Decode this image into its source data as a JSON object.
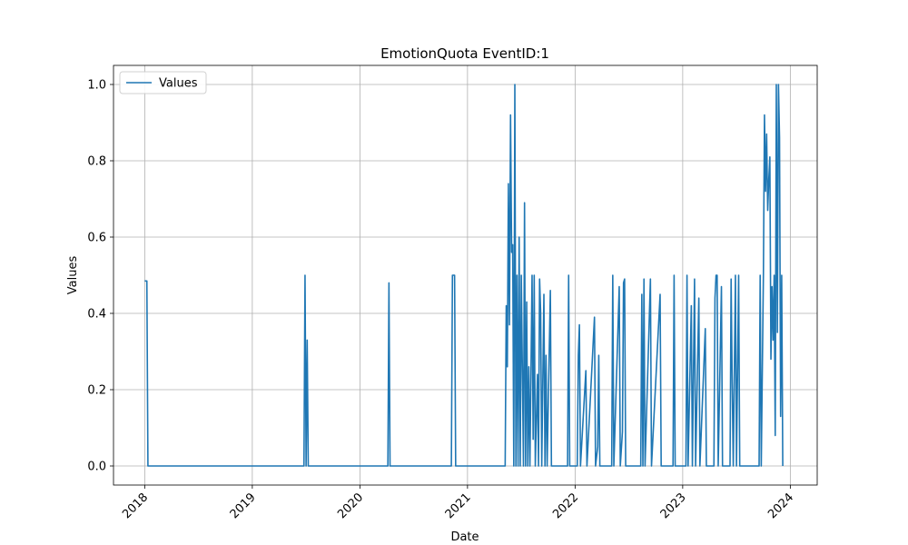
{
  "chart_data": {
    "type": "line",
    "title": "EmotionQuota EventID:1",
    "xlabel": "Date",
    "ylabel": "Values",
    "x": [
      2018.0,
      2018.02,
      2018.03,
      2019.48,
      2019.49,
      2019.5,
      2019.51,
      2019.52,
      2020.26,
      2020.27,
      2020.28,
      2020.85,
      2020.86,
      2020.88,
      2020.89,
      2021.35,
      2021.36,
      2021.37,
      2021.38,
      2021.39,
      2021.4,
      2021.41,
      2021.42,
      2021.43,
      2021.44,
      2021.45,
      2021.46,
      2021.47,
      2021.48,
      2021.49,
      2021.5,
      2021.52,
      2021.53,
      2021.54,
      2021.55,
      2021.56,
      2021.57,
      2021.58,
      2021.6,
      2021.61,
      2021.62,
      2021.63,
      2021.65,
      2021.66,
      2021.67,
      2021.68,
      2021.69,
      2021.71,
      2021.72,
      2021.73,
      2021.74,
      2021.77,
      2021.78,
      2021.93,
      2021.94,
      2021.95,
      2022.02,
      2022.03,
      2022.04,
      2022.05,
      2022.1,
      2022.11,
      2022.18,
      2022.19,
      2022.21,
      2022.22,
      2022.23,
      2022.34,
      2022.35,
      2022.36,
      2022.41,
      2022.42,
      2022.44,
      2022.45,
      2022.46,
      2022.47,
      2022.61,
      2022.62,
      2022.63,
      2022.64,
      2022.65,
      2022.7,
      2022.71,
      2022.79,
      2022.8,
      2022.91,
      2022.92,
      2022.93,
      2023.03,
      2023.04,
      2023.05,
      2023.08,
      2023.09,
      2023.11,
      2023.12,
      2023.15,
      2023.16,
      2023.21,
      2023.22,
      2023.29,
      2023.3,
      2023.31,
      2023.32,
      2023.33,
      2023.36,
      2023.37,
      2023.44,
      2023.45,
      2023.46,
      2023.47,
      2023.49,
      2023.5,
      2023.52,
      2023.53,
      2023.71,
      2023.72,
      2023.73,
      2023.75,
      2023.76,
      2023.77,
      2023.78,
      2023.79,
      2023.8,
      2023.81,
      2023.82,
      2023.83,
      2023.84,
      2023.85,
      2023.86,
      2023.87,
      2023.88,
      2023.89,
      2023.9,
      2023.91,
      2023.92,
      2023.93
    ],
    "series": [
      {
        "name": "Values",
        "color": "#1f77b4",
        "values": [
          0.485,
          0.485,
          0,
          0,
          0.5,
          0,
          0.33,
          0,
          0,
          0.48,
          0,
          0,
          0.5,
          0.5,
          0,
          0,
          0.42,
          0.26,
          0.74,
          0.37,
          0.92,
          0.56,
          0.58,
          0,
          1.0,
          0,
          0.5,
          0,
          0.6,
          0,
          0.5,
          0,
          0.69,
          0,
          0.43,
          0,
          0.26,
          0,
          0.5,
          0.07,
          0.5,
          0,
          0.24,
          0,
          0.49,
          0.4,
          0,
          0.45,
          0,
          0.29,
          0,
          0.46,
          0,
          0,
          0.5,
          0,
          0,
          0.29,
          0.37,
          0,
          0.25,
          0,
          0.39,
          0,
          0.05,
          0.29,
          0,
          0,
          0.5,
          0,
          0.47,
          0,
          0.09,
          0.48,
          0.49,
          0,
          0,
          0.45,
          0,
          0.49,
          0,
          0.49,
          0,
          0.45,
          0,
          0,
          0.5,
          0,
          0,
          0.5,
          0,
          0.42,
          0,
          0.49,
          0,
          0.44,
          0,
          0.36,
          0,
          0,
          0.44,
          0.5,
          0.5,
          0,
          0.47,
          0,
          0,
          0.49,
          0.22,
          0,
          0.5,
          0,
          0.5,
          0,
          0,
          0.5,
          0,
          0.5,
          0.92,
          0.72,
          0.87,
          0.67,
          0.75,
          0.81,
          0.28,
          0.47,
          0.33,
          0.5,
          0.08,
          1.0,
          0.35,
          1.0,
          0.86,
          0.13,
          0.5,
          0
        ]
      }
    ],
    "xlim": [
      2017.71,
      2024.25
    ],
    "xticks": [
      2018,
      2019,
      2020,
      2021,
      2022,
      2023,
      2024
    ],
    "ylim": [
      -0.05,
      1.05
    ],
    "yticks": [
      {
        "value": 0,
        "label": "0.0"
      },
      {
        "value": 0.2,
        "label": "0.2"
      },
      {
        "value": 0.4,
        "label": "0.4"
      },
      {
        "value": 0.6,
        "label": "0.6"
      },
      {
        "value": 0.8,
        "label": "0.8"
      },
      {
        "value": 1,
        "label": "1.0"
      }
    ],
    "grid": true,
    "legend": "upper left"
  }
}
